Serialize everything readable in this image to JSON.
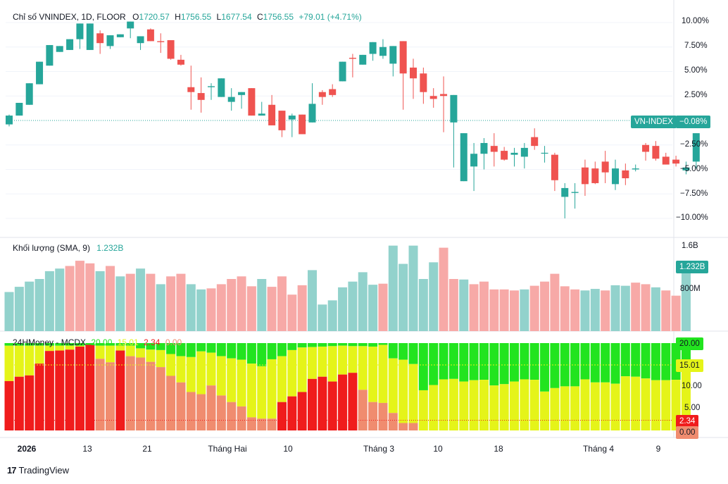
{
  "header": {
    "symbol": "Chỉ số VNINDEX, 1D, FLOOR",
    "o_label": "O",
    "o": "1720.57",
    "h_label": "H",
    "h": "1756.55",
    "l_label": "L",
    "l": "1677.54",
    "c_label": "C",
    "c": "1756.55",
    "change": "+79.01 (+4.71%)"
  },
  "volume_header": {
    "title": "Khối lượng (SMA, 9)",
    "value": "1.232B"
  },
  "mcdx_header": {
    "title": "24HMoney - MCDX",
    "v1": "20.00",
    "v2": "15.01",
    "v3": "2.34",
    "v4": "0.00"
  },
  "price_tags": {
    "name": "VN-INDEX",
    "value": "−0.08%"
  },
  "volume_tag": "1.232B",
  "mcdx_tags": {
    "t20": "20.00",
    "t15": "15.01",
    "t2": "2.34",
    "t0": "0.00"
  },
  "price_axis": [
    "10.00%",
    "7.50%",
    "5.00%",
    "2.50%",
    "−2.50%",
    "−5.00%",
    "−7.50%",
    "−10.00%"
  ],
  "volume_axis": [
    "1.6B",
    "800M"
  ],
  "mcdx_axis": [
    "10.00",
    "5.00"
  ],
  "x_axis": [
    "2026",
    "13",
    "21",
    "Tháng Hai",
    "10",
    "Tháng 3",
    "10",
    "18",
    "Tháng 4",
    "9"
  ],
  "logo": "TradingView",
  "colors": {
    "up": "#26a69a",
    "down": "#ef5350",
    "vol_up": "#92d2cc",
    "vol_down": "#f7a9a7",
    "mcdx_green": "#22e41f",
    "mcdx_yellow": "#e5f419",
    "mcdx_salmon": "#f08c6f",
    "mcdx_red": "#f01c1c"
  },
  "chart_data": [
    {
      "type": "candlestick",
      "title": "Chỉ số VNINDEX, 1D, FLOOR",
      "ylabel": "% change",
      "ylim": [
        -11.5,
        11
      ],
      "candles_pct": [
        [
          -0.4,
          0.5,
          -0.6,
          0.6
        ],
        [
          0.5,
          1.8,
          1.4,
          1.7
        ],
        [
          1.6,
          3.8,
          1.6,
          3.7
        ],
        [
          3.7,
          6,
          5.6,
          5.6
        ],
        [
          5.6,
          7.7,
          7.7,
          7.4
        ],
        [
          7.0,
          7.6,
          7.5,
          7.6
        ],
        [
          7.2,
          8.3,
          7.4,
          8.2
        ],
        [
          8.3,
          9.9,
          7.3,
          9.9
        ],
        [
          7.2,
          9.9,
          7.5,
          9.7
        ],
        [
          8.9,
          7.9,
          9.2,
          6.8
        ],
        [
          7.6,
          8.7,
          8.5,
          7.3
        ],
        [
          8.5,
          8.8,
          8.5,
          8.6
        ],
        [
          9.4,
          10.1,
          9.2,
          8.4
        ],
        [
          7.9,
          8.6,
          7.2,
          8.2
        ],
        [
          9.3,
          8.1,
          9.4,
          8.6
        ],
        [
          8.1,
          8.0,
          8.9,
          6.9
        ],
        [
          8.2,
          6.3,
          8.2,
          6.2
        ],
        [
          6.2,
          5.7,
          6.7,
          5.6
        ],
        [
          3.4,
          2.9,
          5.6,
          1.1
        ],
        [
          2.8,
          2.1,
          4.4,
          0.8
        ],
        [
          3.4,
          3.5,
          3.8,
          2.1
        ],
        [
          2.4,
          4.3,
          3.9,
          3.5
        ],
        [
          1.9,
          2.4,
          3.3,
          1.0
        ],
        [
          2.6,
          2.9,
          2.9,
          1.2
        ],
        [
          3.3,
          0.5,
          2.4,
          2.7
        ],
        [
          0.5,
          0.7,
          1.9,
          1.3
        ],
        [
          1.6,
          -0.5,
          2.6,
          -0.1
        ],
        [
          1.0,
          -1.0,
          1.0,
          -1.7
        ],
        [
          0.1,
          0.5,
          0.7,
          -1.7
        ],
        [
          0.6,
          -1.4,
          -0.1,
          -0.4
        ],
        [
          -0.2,
          1.7,
          -0.2,
          3.8
        ],
        [
          2.9,
          2.4,
          3.1,
          1.6
        ],
        [
          3.2,
          2.6,
          3.7,
          2.4
        ],
        [
          4.0,
          6.0,
          4.0,
          6.0
        ],
        [
          6.4,
          6.3,
          6.8,
          4.4
        ],
        [
          5.7,
          6.7,
          5.8,
          6.7
        ],
        [
          6.8,
          8.0,
          6.5,
          6.1
        ],
        [
          6.6,
          7.5,
          8.3,
          6.3
        ],
        [
          5.8,
          7.6,
          6.5,
          4.5
        ],
        [
          8.1,
          4.8,
          7.4,
          1.1
        ],
        [
          5.4,
          4.3,
          6.3,
          2.2
        ],
        [
          4.8,
          2.9,
          5.4,
          1.7
        ],
        [
          2.5,
          2.2,
          3.3,
          1.3
        ],
        [
          2.7,
          2.5,
          4.5,
          -1.2
        ],
        [
          -0.2,
          2.6,
          -0.3,
          -4.8
        ],
        [
          -6.2,
          -1.3,
          -1.3,
          -5.9
        ],
        [
          -4.7,
          -3.4,
          -2.3,
          -7.2
        ],
        [
          -3.4,
          -2.3,
          -1.8,
          -5.0
        ],
        [
          -2.6,
          -3.2,
          -1.3,
          -4.7
        ],
        [
          -3.1,
          -4.0,
          -2.7,
          -4.1
        ],
        [
          -3.5,
          -3.3,
          -2.8,
          -4.7
        ],
        [
          -3.7,
          -2.8,
          -2.3,
          -4.9
        ],
        [
          -1.7,
          -2.6,
          -0.8,
          -3.0
        ],
        [
          -3.3,
          -3.3,
          -2.6,
          -4.3
        ],
        [
          -3.5,
          -6.1,
          -3.3,
          -7.2
        ],
        [
          -7.8,
          -6.9,
          -6.4,
          -10.0
        ],
        [
          -7.4,
          -7.3,
          -6.4,
          -9.0
        ],
        [
          -4.8,
          -6.5,
          -4.0,
          -7.7
        ],
        [
          -4.9,
          -6.4,
          -4.2,
          -6.5
        ],
        [
          -4.2,
          -5.3,
          -3.1,
          -6.4
        ],
        [
          -6.5,
          -4.9,
          -4.0,
          -7.1
        ],
        [
          -5.1,
          -5.9,
          -4.4,
          -6.6
        ],
        [
          -5.0,
          -4.9,
          -4.5,
          -5.2
        ],
        [
          -2.5,
          -3.2,
          -2.3,
          -4.1
        ],
        [
          -2.6,
          -3.9,
          -2.1,
          -4.1
        ],
        [
          -3.7,
          -4.5,
          -3.3,
          -4.2
        ],
        [
          -4.0,
          -4.4,
          -3.6,
          -4.7
        ],
        [
          -5.1,
          -4.8,
          -4.2,
          -5.5
        ],
        [
          -4.2,
          -1.3,
          -1.3,
          -4.9
        ]
      ],
      "last_value_pct": -0.08
    },
    {
      "type": "bar",
      "title": "Khối lượng (SMA, 9)",
      "ylabel": "Volume",
      "ylim": [
        0,
        1.75
      ],
      "values_b": [
        0.75,
        0.85,
        0.95,
        1.0,
        1.15,
        1.2,
        1.25,
        1.35,
        1.3,
        1.15,
        1.25,
        1.05,
        1.1,
        1.2,
        1.1,
        0.9,
        1.05,
        1.1,
        0.9,
        0.8,
        0.82,
        0.9,
        1.0,
        1.05,
        0.86,
        1.0,
        0.85,
        1.05,
        0.7,
        0.88,
        1.17,
        0.51,
        0.59,
        0.84,
        0.95,
        1.13,
        0.89,
        0.91,
        1.64,
        1.29,
        1.64,
        1.0,
        1.32,
        1.6,
        1.0,
        0.99,
        0.9,
        0.95,
        0.8,
        0.8,
        0.78,
        0.8,
        0.87,
        0.95,
        1.1,
        0.86,
        0.8,
        0.78,
        0.81,
        0.78,
        0.88,
        0.87,
        0.93,
        0.9,
        0.84,
        0.78,
        0.68,
        1.232
      ],
      "up_flags": [
        1,
        1,
        1,
        1,
        1,
        1,
        0,
        0,
        0,
        1,
        0,
        1,
        0,
        1,
        0,
        1,
        0,
        0,
        1,
        1,
        0,
        0,
        0,
        0,
        0,
        1,
        0,
        0,
        0,
        0,
        1,
        1,
        1,
        1,
        1,
        1,
        1,
        0,
        1,
        1,
        1,
        1,
        1,
        0,
        0,
        1,
        0,
        0,
        0,
        0,
        0,
        1,
        0,
        0,
        0,
        0,
        0,
        1,
        1,
        0,
        1,
        1,
        0,
        0,
        1,
        0,
        0,
        1
      ],
      "y_axis_labels": [
        "1.6B",
        "800M"
      ],
      "last_value": "1.232B"
    },
    {
      "type": "stacked_bar",
      "title": "24HMoney - MCDX",
      "ylim": [
        0,
        20
      ],
      "series": [
        {
          "name": "20.00",
          "color": "green"
        },
        {
          "name": "15.01",
          "color": "yellow"
        },
        {
          "name": "2.34",
          "color": "red"
        },
        {
          "name": "0.00",
          "color": "salmon"
        }
      ],
      "bars": [
        [
          11.3,
          0,
          0,
          8.7
        ],
        [
          12.3,
          0,
          0,
          7.7
        ],
        [
          12.6,
          0,
          0,
          7.4
        ],
        [
          15.3,
          0,
          0,
          4.7
        ],
        [
          18.2,
          0,
          0,
          1.8
        ],
        [
          18.3,
          0,
          0,
          1.7
        ],
        [
          18.5,
          0,
          0,
          1.5
        ],
        [
          19.2,
          0,
          0,
          0.8
        ],
        [
          19.6,
          0,
          0,
          0.4
        ],
        [
          0,
          16.4,
          0,
          3.6
        ],
        [
          0,
          15.6,
          0,
          4.4
        ],
        [
          18.3,
          0,
          0,
          1.7
        ],
        [
          0,
          17.0,
          0,
          3.0
        ],
        [
          0,
          16.7,
          0,
          3.3
        ],
        [
          0,
          15.7,
          0,
          4.3
        ],
        [
          0,
          14.5,
          0,
          5.5
        ],
        [
          0,
          12.5,
          0,
          7.5
        ],
        [
          0,
          11.0,
          0,
          9.0
        ],
        [
          0,
          8.8,
          0,
          11.2
        ],
        [
          0,
          8.3,
          0,
          11.7
        ],
        [
          0,
          10.3,
          0,
          9.7
        ],
        [
          0,
          8.0,
          0,
          12.0
        ],
        [
          0,
          6.5,
          0,
          13.5
        ],
        [
          0,
          5.5,
          0,
          14.5
        ],
        [
          0,
          3.0,
          0,
          17.0
        ],
        [
          0,
          2.7,
          0,
          17.3
        ],
        [
          0,
          2.7,
          0,
          17.3
        ],
        [
          6.5,
          0,
          0,
          13.5
        ],
        [
          7.8,
          0,
          0,
          12.2
        ],
        [
          8.8,
          0,
          0,
          11.2
        ],
        [
          11.8,
          0,
          0,
          8.2
        ],
        [
          12.3,
          0,
          0,
          7.7
        ],
        [
          11.2,
          0,
          0,
          8.8
        ],
        [
          12.8,
          0,
          0,
          7.2
        ],
        [
          13.2,
          0,
          0,
          6.8
        ],
        [
          0,
          9.3,
          0,
          10.7
        ],
        [
          0,
          6.5,
          0,
          13.5
        ],
        [
          0,
          6.3,
          0,
          13.7
        ],
        [
          0,
          4.0,
          0,
          16.0
        ],
        [
          0,
          1.7,
          0,
          18.3
        ],
        [
          0,
          1.7,
          0,
          18.3
        ],
        [
          0,
          0,
          0,
          20.0
        ],
        [
          0,
          0,
          0,
          20.0
        ],
        [
          0,
          0,
          0,
          20.0
        ],
        [
          0,
          0,
          0,
          20.0
        ],
        [
          0,
          0,
          0,
          20.0
        ],
        [
          0,
          0,
          0,
          20.0
        ],
        [
          0,
          0,
          0,
          20.0
        ],
        [
          0,
          0,
          0,
          20.0
        ],
        [
          0,
          0,
          0,
          20.0
        ],
        [
          0,
          0,
          0,
          20.0
        ],
        [
          0,
          0,
          0,
          20.0
        ],
        [
          0,
          0,
          0,
          20.0
        ],
        [
          0,
          0,
          0,
          20.0
        ],
        [
          0,
          0,
          0,
          20.0
        ],
        [
          0,
          0,
          0,
          20.0
        ],
        [
          0,
          0,
          0,
          20.0
        ],
        [
          0,
          0,
          0,
          20.0
        ],
        [
          0,
          0,
          0,
          20.0
        ],
        [
          0,
          0,
          0,
          20.0
        ],
        [
          0,
          0,
          0,
          20.0
        ],
        [
          0,
          0,
          0,
          20.0
        ],
        [
          0,
          0,
          0,
          20.0
        ],
        [
          0,
          0,
          0,
          20.0
        ],
        [
          0,
          0,
          0,
          20.0
        ],
        [
          0,
          0,
          0,
          20.0
        ],
        [
          0,
          0,
          0,
          20.0
        ],
        [
          2.34,
          0,
          0,
          17.66
        ]
      ],
      "green_tops": [
        20,
        20,
        20,
        20,
        20,
        20,
        20,
        20,
        20,
        20,
        20,
        20,
        20,
        20,
        20,
        20,
        20,
        20,
        20,
        20,
        20,
        20,
        20,
        20,
        20,
        20,
        20,
        20,
        20,
        20,
        20,
        20,
        20,
        20,
        20,
        20,
        20,
        20,
        20,
        20,
        20,
        20,
        20,
        20,
        20,
        20,
        20,
        20,
        20,
        20,
        20,
        20,
        20,
        20,
        20,
        20,
        20,
        20,
        20,
        20,
        20,
        20,
        20,
        20,
        20,
        20,
        20,
        20
      ],
      "yellow_tops": [
        19.4,
        19.4,
        19.4,
        19.4,
        19.4,
        19.4,
        19.4,
        19.4,
        19.4,
        19.4,
        19.4,
        19.4,
        19.4,
        18.8,
        18.5,
        18.4,
        17.5,
        17.0,
        16.8,
        18.1,
        17.8,
        17.0,
        16.5,
        16.2,
        15.3,
        14.7,
        16.3,
        17.0,
        18.4,
        19.0,
        19.1,
        19.2,
        19.3,
        19.4,
        19.3,
        19.3,
        19.2,
        19.6,
        16.5,
        16.2,
        15.2,
        9.2,
        10.4,
        11.7,
        11.8,
        11.2,
        11.5,
        11.6,
        10.3,
        10.6,
        11.2,
        11.7,
        11.6,
        8.9,
        9.7,
        10.1,
        10.1,
        11.7,
        11.0,
        11.0,
        10.7,
        12.4,
        12.3,
        11.9,
        11.5,
        11.5,
        11.6,
        15.01
      ],
      "salmon_tops": [
        0,
        0,
        0,
        0,
        0,
        0,
        0,
        0,
        0,
        16.4,
        15.6,
        0,
        17.0,
        16.7,
        15.7,
        14.5,
        12.5,
        11.0,
        8.8,
        8.3,
        10.3,
        8.0,
        6.5,
        5.5,
        3.0,
        2.7,
        2.7,
        0,
        0,
        0,
        0,
        0,
        0,
        0,
        0,
        9.3,
        6.5,
        6.3,
        4.0,
        1.7,
        1.7,
        0,
        0,
        0,
        0,
        0,
        0,
        0,
        0,
        0,
        0,
        0,
        0,
        0,
        0,
        0,
        0,
        0,
        0,
        0,
        0,
        0,
        0,
        0,
        0,
        0,
        0,
        0
      ],
      "red_tops": [
        11.3,
        12.3,
        12.6,
        15.3,
        18.2,
        18.3,
        18.5,
        19.2,
        19.6,
        0,
        0,
        18.3,
        0,
        0,
        0,
        0,
        0,
        0,
        0,
        0,
        0,
        0,
        0,
        0,
        0,
        0,
        0,
        6.5,
        7.8,
        8.8,
        11.8,
        12.3,
        11.2,
        12.8,
        13.2,
        0,
        0,
        0,
        0,
        0,
        0,
        0,
        0,
        0,
        0,
        0,
        0,
        0,
        0,
        0,
        0,
        0,
        0,
        0,
        0,
        0,
        0,
        0,
        0,
        0,
        0,
        0,
        0,
        0,
        0,
        0,
        0,
        2.34
      ],
      "y_axis_labels": [
        "20.00",
        "15.01",
        "10.00",
        "5.00",
        "2.34",
        "0.00"
      ]
    }
  ]
}
